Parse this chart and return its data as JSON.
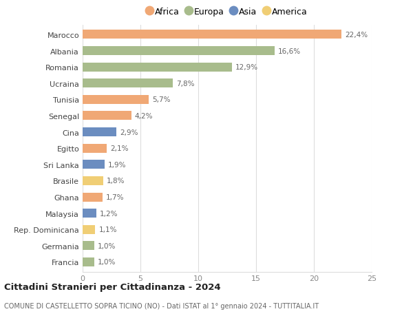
{
  "countries": [
    "Marocco",
    "Albania",
    "Romania",
    "Ucraina",
    "Tunisia",
    "Senegal",
    "Cina",
    "Egitto",
    "Sri Lanka",
    "Brasile",
    "Ghana",
    "Malaysia",
    "Rep. Dominicana",
    "Germania",
    "Francia"
  ],
  "values": [
    22.4,
    16.6,
    12.9,
    7.8,
    5.7,
    4.2,
    2.9,
    2.1,
    1.9,
    1.8,
    1.7,
    1.2,
    1.1,
    1.0,
    1.0
  ],
  "labels": [
    "22,4%",
    "16,6%",
    "12,9%",
    "7,8%",
    "5,7%",
    "4,2%",
    "2,9%",
    "2,1%",
    "1,9%",
    "1,8%",
    "1,7%",
    "1,2%",
    "1,1%",
    "1,0%",
    "1,0%"
  ],
  "continents": [
    "Africa",
    "Europa",
    "Europa",
    "Europa",
    "Africa",
    "Africa",
    "Asia",
    "Africa",
    "Asia",
    "America",
    "Africa",
    "Asia",
    "America",
    "Europa",
    "Europa"
  ],
  "colors": {
    "Africa": "#F0A875",
    "Europa": "#A8BC8C",
    "Asia": "#6B8DC0",
    "America": "#F0CE75"
  },
  "legend_order": [
    "Africa",
    "Europa",
    "Asia",
    "America"
  ],
  "xlim": [
    0,
    25
  ],
  "xticks": [
    0,
    5,
    10,
    15,
    20,
    25
  ],
  "title_main": "Cittadini Stranieri per Cittadinanza - 2024",
  "title_sub": "COMUNE DI CASTELLETTO SOPRA TICINO (NO) - Dati ISTAT al 1° gennaio 2024 - TUTTITALIA.IT",
  "background_color": "#ffffff",
  "grid_color": "#dddddd",
  "bar_height": 0.55
}
